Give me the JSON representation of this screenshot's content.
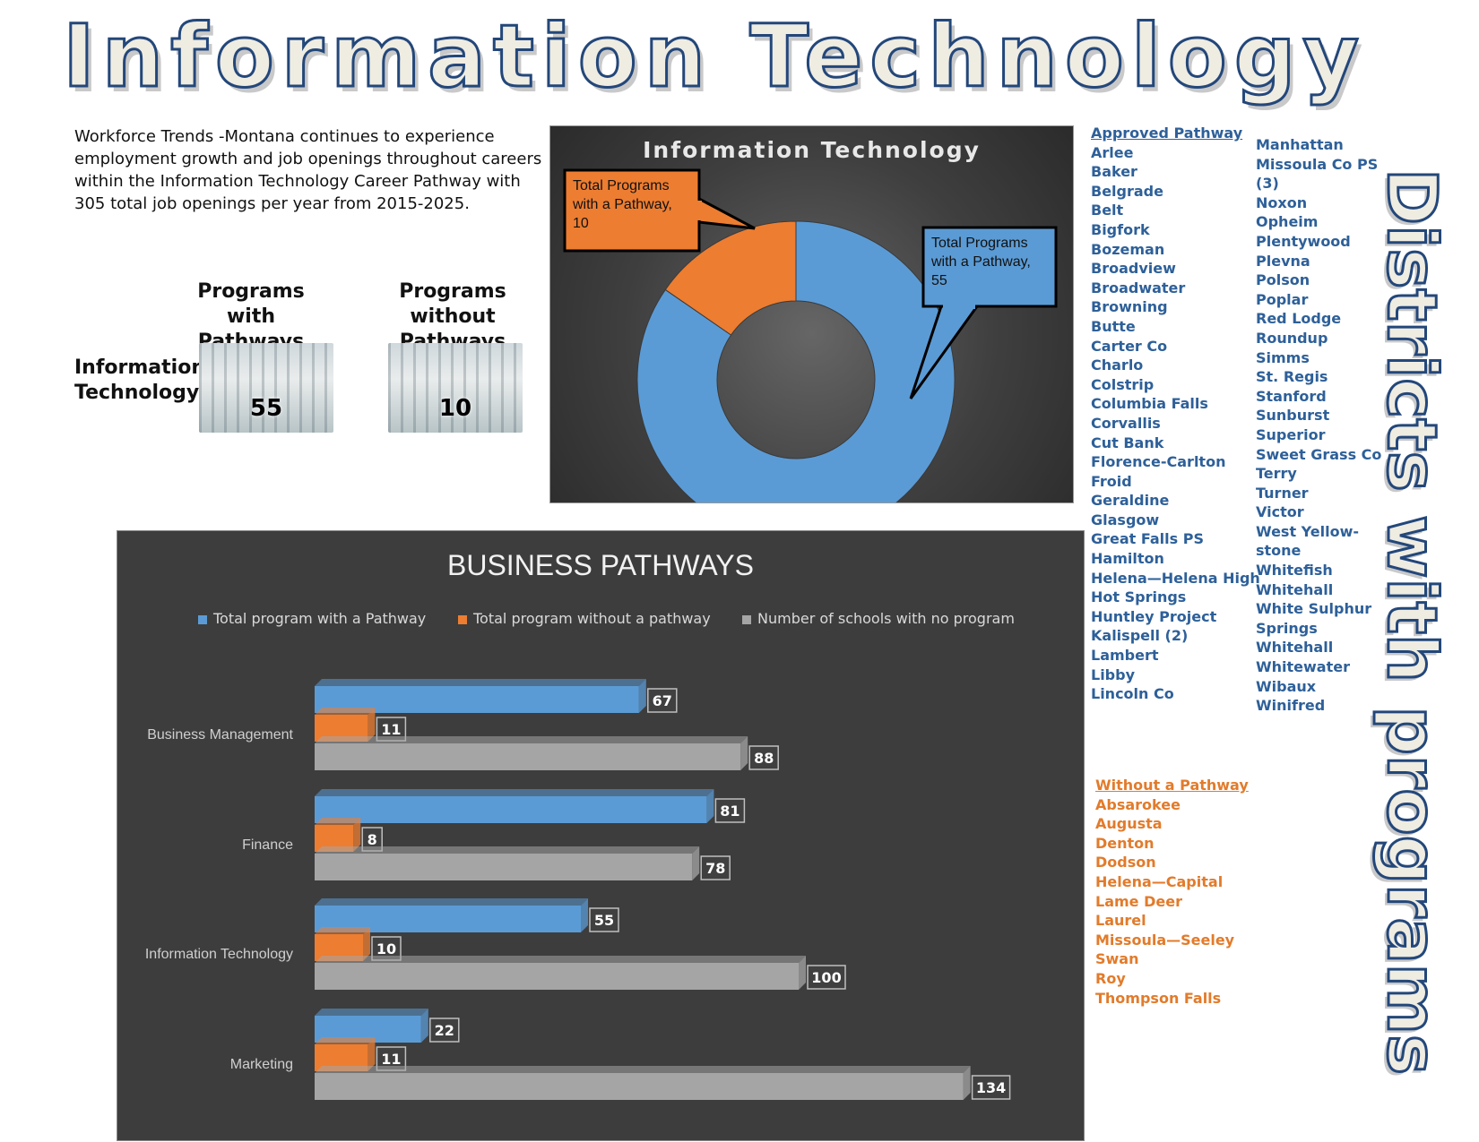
{
  "title": "Information Technology",
  "intro": "Workforce Trends -Montana continues to experience employment growth and job openings throughout careers within the Information Technology Career Pathway with 305 total job openings per year from 2015-2025.",
  "summary": {
    "col_with": "Programs with Pathways",
    "col_without": "Programs without Pathways",
    "row_label": "Information Technology",
    "with_value": "55",
    "without_value": "10"
  },
  "side_title": "Districts with programs",
  "lists": {
    "approved_heading": "Approved Pathway",
    "approved_col1": [
      "Arlee",
      "Baker",
      "Belgrade",
      "Belt",
      "Bigfork",
      "Bozeman",
      "Broadview",
      "Broadwater",
      "Browning",
      "Butte",
      "Carter Co",
      "Charlo",
      "Colstrip",
      "Columbia Falls",
      "Corvallis",
      "Cut Bank",
      "Florence-Carlton",
      "Froid",
      "Geraldine",
      "Glasgow",
      "Great Falls PS",
      "Hamilton",
      "Helena—Helena High",
      "Hot Springs",
      "Huntley Project",
      "Kalispell (2)",
      "Lambert",
      "Libby",
      "Lincoln Co"
    ],
    "approved_col2": [
      "Manhattan",
      "Missoula Co PS",
      "(3)",
      "Noxon",
      "Opheim",
      "Plentywood",
      "Plevna",
      "Polson",
      "Poplar",
      "Red Lodge",
      "Roundup",
      "Simms",
      "St. Regis",
      "Stanford",
      "Sunburst",
      "Superior",
      "Sweet Grass Co",
      "Terry",
      "Turner",
      "Victor",
      "West Yellow-",
      "stone",
      "Whitefish",
      "Whitehall",
      "White Sulphur",
      "Springs",
      "Whitehall",
      "Whitewater",
      "Wibaux",
      "Winifred"
    ],
    "without_heading": "Without a Pathway",
    "without": [
      "Absarokee",
      "Augusta",
      "Denton",
      "Dodson",
      "Helena—Capital",
      "Lame Deer",
      "Laurel",
      "Missoula—Seeley",
      "Swan",
      "Roy",
      "Thompson Falls"
    ]
  },
  "chart_data": [
    {
      "type": "pie",
      "title": "Information Technology",
      "labels": [
        "Total Programs with a Pathway",
        "Total Programs with a Pathway"
      ],
      "values": [
        55,
        10
      ],
      "colors": [
        "#5b9bd5",
        "#ed7d31"
      ],
      "data_labels": [
        "Total Programs with a Pathway, 55",
        "Total Programs with a Pathway, 10"
      ]
    },
    {
      "type": "bar",
      "title": "BUSINESS PATHWAYS",
      "orientation": "horizontal",
      "categories": [
        "Business Management",
        "Finance",
        "Information Technology",
        "Marketing"
      ],
      "series": [
        {
          "name": "Total program with a Pathway",
          "color": "#5b9bd5",
          "values": [
            67,
            81,
            55,
            22
          ]
        },
        {
          "name": "Total program without a pathway",
          "color": "#ed7d31",
          "values": [
            11,
            8,
            10,
            11
          ]
        },
        {
          "name": "Number of schools with no program",
          "color": "#a5a5a5",
          "values": [
            88,
            78,
            100,
            134
          ]
        }
      ],
      "xlim": [
        0,
        150
      ],
      "legend": "top"
    }
  ]
}
